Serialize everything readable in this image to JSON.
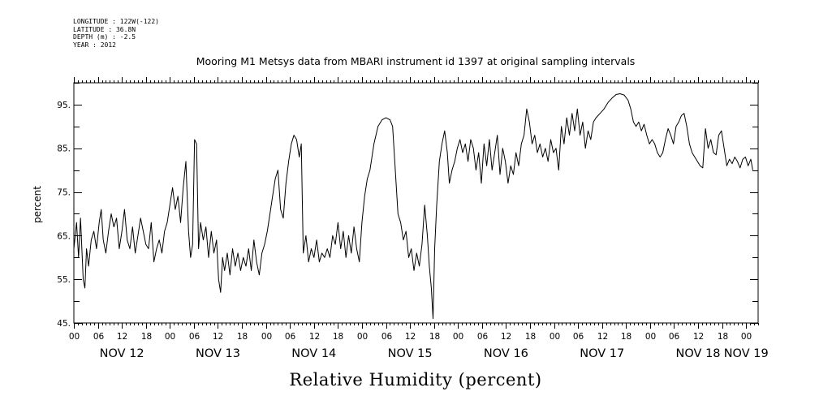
{
  "header": {
    "longitude": "LONGITUDE : 122W(-122)",
    "latitude": "LATITUDE : 36.8N",
    "depth": "DEPTH (m) : -2.5",
    "year": "YEAR : 2012"
  },
  "chart_data": {
    "type": "line",
    "title": "Mooring M1 Metsys data from MBARI instrument id 1397 at original sampling intervals",
    "xlabel": "Relative Humidity (percent)",
    "ylabel": "percent",
    "ylim": [
      45,
      100
    ],
    "yticks": [
      45,
      55,
      65,
      75,
      85,
      95
    ],
    "ytick_labels": [
      "45.",
      "55.",
      "65.",
      "75.",
      "85.",
      "95."
    ],
    "xlim": [
      "2012-11-12T00:00",
      "2012-11-19T03:00"
    ],
    "hour_tick_labels": [
      "06",
      "12",
      "18",
      "00"
    ],
    "day_labels": [
      {
        "label": "NOV 12",
        "date": "2012-11-12T12:00"
      },
      {
        "label": "NOV 13",
        "date": "2012-11-13T12:00"
      },
      {
        "label": "NOV 14",
        "date": "2012-11-14T12:00"
      },
      {
        "label": "NOV 15",
        "date": "2012-11-15T12:00"
      },
      {
        "label": "NOV 16",
        "date": "2012-11-16T12:00"
      },
      {
        "label": "NOV 17",
        "date": "2012-11-17T12:00"
      },
      {
        "label": "NOV 18",
        "date": "2012-11-18T12:00"
      },
      {
        "label": "NOV 19",
        "date": "2012-11-19T00:00"
      }
    ],
    "grid": false,
    "series": [
      {
        "color": "#000000",
        "points": [
          [
            "2012-11-12T00:00",
            62
          ],
          [
            "2012-11-12T00:40",
            68
          ],
          [
            "2012-11-12T01:10",
            60
          ],
          [
            "2012-11-12T01:40",
            69
          ],
          [
            "2012-11-12T02:20",
            55
          ],
          [
            "2012-11-12T02:45",
            53
          ],
          [
            "2012-11-12T03:10",
            62
          ],
          [
            "2012-11-12T03:40",
            58
          ],
          [
            "2012-11-12T04:20",
            64
          ],
          [
            "2012-11-12T05:00",
            66
          ],
          [
            "2012-11-12T05:40",
            62
          ],
          [
            "2012-11-12T06:20",
            68
          ],
          [
            "2012-11-12T06:50",
            71
          ],
          [
            "2012-11-12T07:20",
            64
          ],
          [
            "2012-11-12T08:00",
            61
          ],
          [
            "2012-11-12T08:40",
            66
          ],
          [
            "2012-11-12T09:20",
            70
          ],
          [
            "2012-11-12T10:00",
            67
          ],
          [
            "2012-11-12T10:40",
            69
          ],
          [
            "2012-11-12T11:20",
            62
          ],
          [
            "2012-11-12T12:00",
            66
          ],
          [
            "2012-11-12T12:40",
            71
          ],
          [
            "2012-11-12T13:20",
            64
          ],
          [
            "2012-11-12T14:00",
            62
          ],
          [
            "2012-11-12T14:40",
            67
          ],
          [
            "2012-11-12T15:20",
            61
          ],
          [
            "2012-11-12T16:00",
            65
          ],
          [
            "2012-11-12T16:40",
            69
          ],
          [
            "2012-11-12T17:20",
            66
          ],
          [
            "2012-11-12T18:00",
            63
          ],
          [
            "2012-11-12T18:40",
            62
          ],
          [
            "2012-11-12T19:20",
            68
          ],
          [
            "2012-11-12T20:00",
            59
          ],
          [
            "2012-11-12T20:40",
            62
          ],
          [
            "2012-11-12T21:20",
            64
          ],
          [
            "2012-11-12T22:00",
            61
          ],
          [
            "2012-11-12T22:40",
            66
          ],
          [
            "2012-11-12T23:20",
            68
          ],
          [
            "2012-11-13T00:00",
            72
          ],
          [
            "2012-11-13T00:40",
            76
          ],
          [
            "2012-11-13T01:20",
            71
          ],
          [
            "2012-11-13T02:00",
            74
          ],
          [
            "2012-11-13T02:40",
            68
          ],
          [
            "2012-11-13T03:20",
            76
          ],
          [
            "2012-11-13T04:00",
            82
          ],
          [
            "2012-11-13T04:40",
            66
          ],
          [
            "2012-11-13T05:10",
            60
          ],
          [
            "2012-11-13T05:40",
            63
          ],
          [
            "2012-11-13T06:10",
            87
          ],
          [
            "2012-11-13T06:40",
            86
          ],
          [
            "2012-11-13T07:10",
            62
          ],
          [
            "2012-11-13T07:40",
            68
          ],
          [
            "2012-11-13T08:20",
            64
          ],
          [
            "2012-11-13T09:00",
            67
          ],
          [
            "2012-11-13T09:40",
            60
          ],
          [
            "2012-11-13T10:20",
            66
          ],
          [
            "2012-11-13T11:00",
            61
          ],
          [
            "2012-11-13T11:40",
            64
          ],
          [
            "2012-11-13T12:10",
            55
          ],
          [
            "2012-11-13T12:40",
            52
          ],
          [
            "2012-11-13T13:10",
            60
          ],
          [
            "2012-11-13T13:40",
            57
          ],
          [
            "2012-11-13T14:20",
            61
          ],
          [
            "2012-11-13T15:00",
            56
          ],
          [
            "2012-11-13T15:40",
            62
          ],
          [
            "2012-11-13T16:20",
            58
          ],
          [
            "2012-11-13T17:00",
            61
          ],
          [
            "2012-11-13T17:40",
            57
          ],
          [
            "2012-11-13T18:20",
            60
          ],
          [
            "2012-11-13T19:00",
            58
          ],
          [
            "2012-11-13T19:40",
            62
          ],
          [
            "2012-11-13T20:20",
            57
          ],
          [
            "2012-11-13T21:00",
            64
          ],
          [
            "2012-11-13T21:40",
            59
          ],
          [
            "2012-11-13T22:20",
            56
          ],
          [
            "2012-11-13T23:00",
            61
          ],
          [
            "2012-11-13T23:40",
            63
          ],
          [
            "2012-11-14T00:20",
            66
          ],
          [
            "2012-11-14T01:00",
            70
          ],
          [
            "2012-11-14T01:40",
            74
          ],
          [
            "2012-11-14T02:20",
            78
          ],
          [
            "2012-11-14T03:00",
            80
          ],
          [
            "2012-11-14T03:40",
            71
          ],
          [
            "2012-11-14T04:20",
            69
          ],
          [
            "2012-11-14T05:00",
            77
          ],
          [
            "2012-11-14T05:40",
            82
          ],
          [
            "2012-11-14T06:20",
            86
          ],
          [
            "2012-11-14T07:00",
            88
          ],
          [
            "2012-11-14T07:40",
            87
          ],
          [
            "2012-11-14T08:20",
            83
          ],
          [
            "2012-11-14T08:50",
            86
          ],
          [
            "2012-11-14T09:20",
            61
          ],
          [
            "2012-11-14T10:00",
            65
          ],
          [
            "2012-11-14T10:40",
            59
          ],
          [
            "2012-11-14T11:20",
            62
          ],
          [
            "2012-11-14T12:00",
            60
          ],
          [
            "2012-11-14T12:40",
            64
          ],
          [
            "2012-11-14T13:20",
            59
          ],
          [
            "2012-11-14T14:00",
            61
          ],
          [
            "2012-11-14T14:40",
            60
          ],
          [
            "2012-11-14T15:20",
            62
          ],
          [
            "2012-11-14T16:00",
            60
          ],
          [
            "2012-11-14T16:40",
            65
          ],
          [
            "2012-11-14T17:20",
            63
          ],
          [
            "2012-11-14T18:00",
            68
          ],
          [
            "2012-11-14T18:40",
            62
          ],
          [
            "2012-11-14T19:20",
            66
          ],
          [
            "2012-11-14T20:00",
            60
          ],
          [
            "2012-11-14T20:40",
            65
          ],
          [
            "2012-11-14T21:20",
            61
          ],
          [
            "2012-11-14T22:00",
            67
          ],
          [
            "2012-11-14T22:40",
            62
          ],
          [
            "2012-11-14T23:20",
            59
          ],
          [
            "2012-11-15T00:00",
            68
          ],
          [
            "2012-11-15T00:40",
            74
          ],
          [
            "2012-11-15T01:20",
            78
          ],
          [
            "2012-11-15T02:00",
            80
          ],
          [
            "2012-11-15T03:00",
            86
          ],
          [
            "2012-11-15T04:00",
            90
          ],
          [
            "2012-11-15T05:00",
            91.5
          ],
          [
            "2012-11-15T06:00",
            92
          ],
          [
            "2012-11-15T07:00",
            91.5
          ],
          [
            "2012-11-15T07:40",
            90
          ],
          [
            "2012-11-15T08:20",
            80
          ],
          [
            "2012-11-15T09:00",
            70
          ],
          [
            "2012-11-15T09:40",
            68
          ],
          [
            "2012-11-15T10:20",
            64
          ],
          [
            "2012-11-15T11:00",
            66
          ],
          [
            "2012-11-15T11:40",
            60
          ],
          [
            "2012-11-15T12:20",
            62
          ],
          [
            "2012-11-15T13:00",
            57
          ],
          [
            "2012-11-15T13:40",
            61
          ],
          [
            "2012-11-15T14:20",
            58
          ],
          [
            "2012-11-15T15:00",
            63
          ],
          [
            "2012-11-15T15:40",
            72
          ],
          [
            "2012-11-15T16:20",
            65
          ],
          [
            "2012-11-15T16:50",
            58
          ],
          [
            "2012-11-15T17:20",
            53
          ],
          [
            "2012-11-15T17:45",
            46
          ],
          [
            "2012-11-15T18:10",
            62
          ],
          [
            "2012-11-15T18:40",
            72
          ],
          [
            "2012-11-15T19:20",
            82
          ],
          [
            "2012-11-15T20:00",
            86
          ],
          [
            "2012-11-15T20:40",
            89
          ],
          [
            "2012-11-15T21:20",
            84
          ],
          [
            "2012-11-15T21:50",
            77
          ],
          [
            "2012-11-15T22:30",
            80
          ],
          [
            "2012-11-15T23:10",
            82
          ],
          [
            "2012-11-15T23:50",
            85
          ],
          [
            "2012-11-16T00:30",
            87
          ],
          [
            "2012-11-16T01:10",
            84
          ],
          [
            "2012-11-16T01:50",
            86
          ],
          [
            "2012-11-16T02:30",
            82
          ],
          [
            "2012-11-16T03:10",
            87
          ],
          [
            "2012-11-16T03:50",
            85
          ],
          [
            "2012-11-16T04:30",
            80
          ],
          [
            "2012-11-16T05:10",
            84
          ],
          [
            "2012-11-16T05:50",
            77
          ],
          [
            "2012-11-16T06:30",
            86
          ],
          [
            "2012-11-16T07:10",
            81
          ],
          [
            "2012-11-16T07:50",
            87
          ],
          [
            "2012-11-16T08:30",
            80
          ],
          [
            "2012-11-16T09:10",
            84
          ],
          [
            "2012-11-16T09:50",
            88
          ],
          [
            "2012-11-16T10:30",
            79
          ],
          [
            "2012-11-16T11:10",
            85
          ],
          [
            "2012-11-16T11:50",
            82
          ],
          [
            "2012-11-16T12:30",
            77
          ],
          [
            "2012-11-16T13:10",
            81
          ],
          [
            "2012-11-16T13:50",
            79
          ],
          [
            "2012-11-16T14:30",
            84
          ],
          [
            "2012-11-16T15:10",
            81
          ],
          [
            "2012-11-16T15:50",
            86
          ],
          [
            "2012-11-16T16:30",
            88
          ],
          [
            "2012-11-16T17:10",
            94
          ],
          [
            "2012-11-16T17:50",
            91
          ],
          [
            "2012-11-16T18:30",
            86
          ],
          [
            "2012-11-16T19:10",
            88
          ],
          [
            "2012-11-16T19:50",
            84
          ],
          [
            "2012-11-16T20:30",
            86
          ],
          [
            "2012-11-16T21:10",
            83
          ],
          [
            "2012-11-16T21:50",
            85
          ],
          [
            "2012-11-16T22:30",
            82
          ],
          [
            "2012-11-16T23:10",
            87
          ],
          [
            "2012-11-16T23:50",
            84
          ],
          [
            "2012-11-17T00:30",
            85
          ],
          [
            "2012-11-17T01:10",
            80
          ],
          [
            "2012-11-17T01:50",
            90
          ],
          [
            "2012-11-17T02:30",
            86
          ],
          [
            "2012-11-17T03:10",
            92
          ],
          [
            "2012-11-17T03:50",
            88
          ],
          [
            "2012-11-17T04:30",
            93
          ],
          [
            "2012-11-17T05:10",
            89
          ],
          [
            "2012-11-17T05:50",
            94
          ],
          [
            "2012-11-17T06:30",
            88
          ],
          [
            "2012-11-17T07:10",
            91
          ],
          [
            "2012-11-17T07:50",
            85
          ],
          [
            "2012-11-17T08:30",
            89
          ],
          [
            "2012-11-17T09:10",
            87
          ],
          [
            "2012-11-17T09:50",
            91
          ],
          [
            "2012-11-17T10:30",
            92
          ],
          [
            "2012-11-17T11:30",
            93
          ],
          [
            "2012-11-17T12:30",
            94
          ],
          [
            "2012-11-17T13:30",
            95.5
          ],
          [
            "2012-11-17T14:30",
            96.5
          ],
          [
            "2012-11-17T15:30",
            97.3
          ],
          [
            "2012-11-17T16:30",
            97.5
          ],
          [
            "2012-11-17T17:30",
            97.2
          ],
          [
            "2012-11-17T18:30",
            96
          ],
          [
            "2012-11-17T19:10",
            94
          ],
          [
            "2012-11-17T19:50",
            91
          ],
          [
            "2012-11-17T20:30",
            90
          ],
          [
            "2012-11-17T21:10",
            91
          ],
          [
            "2012-11-17T21:50",
            89
          ],
          [
            "2012-11-17T22:30",
            90.5
          ],
          [
            "2012-11-17T23:10",
            88
          ],
          [
            "2012-11-17T23:50",
            86
          ],
          [
            "2012-11-18T00:30",
            87
          ],
          [
            "2012-11-18T01:10",
            86
          ],
          [
            "2012-11-18T01:50",
            84
          ],
          [
            "2012-11-18T02:30",
            83
          ],
          [
            "2012-11-18T03:10",
            84
          ],
          [
            "2012-11-18T03:50",
            87
          ],
          [
            "2012-11-18T04:30",
            89.5
          ],
          [
            "2012-11-18T05:10",
            88
          ],
          [
            "2012-11-18T05:50",
            86
          ],
          [
            "2012-11-18T06:30",
            90
          ],
          [
            "2012-11-18T07:10",
            91
          ],
          [
            "2012-11-18T07:50",
            92.5
          ],
          [
            "2012-11-18T08:30",
            93
          ],
          [
            "2012-11-18T09:10",
            90
          ],
          [
            "2012-11-18T09:50",
            86
          ],
          [
            "2012-11-18T10:30",
            84
          ],
          [
            "2012-11-18T11:10",
            83
          ],
          [
            "2012-11-18T11:50",
            82
          ],
          [
            "2012-11-18T12:30",
            81
          ],
          [
            "2012-11-18T13:10",
            80.5
          ],
          [
            "2012-11-18T13:50",
            89.5
          ],
          [
            "2012-11-18T14:30",
            85
          ],
          [
            "2012-11-18T15:10",
            87
          ],
          [
            "2012-11-18T15:50",
            84
          ],
          [
            "2012-11-18T16:30",
            83.5
          ],
          [
            "2012-11-18T17:10",
            88
          ],
          [
            "2012-11-18T17:50",
            89
          ],
          [
            "2012-11-18T18:30",
            85
          ],
          [
            "2012-11-18T19:10",
            81
          ],
          [
            "2012-11-18T19:50",
            82.5
          ],
          [
            "2012-11-18T20:30",
            81.5
          ],
          [
            "2012-11-18T21:10",
            83
          ],
          [
            "2012-11-18T21:50",
            82
          ],
          [
            "2012-11-18T22:30",
            80.5
          ],
          [
            "2012-11-18T23:10",
            82.5
          ],
          [
            "2012-11-18T23:50",
            83
          ],
          [
            "2012-11-19T00:30",
            81
          ],
          [
            "2012-11-19T01:10",
            82.5
          ],
          [
            "2012-11-19T01:40",
            80
          ]
        ]
      }
    ]
  }
}
